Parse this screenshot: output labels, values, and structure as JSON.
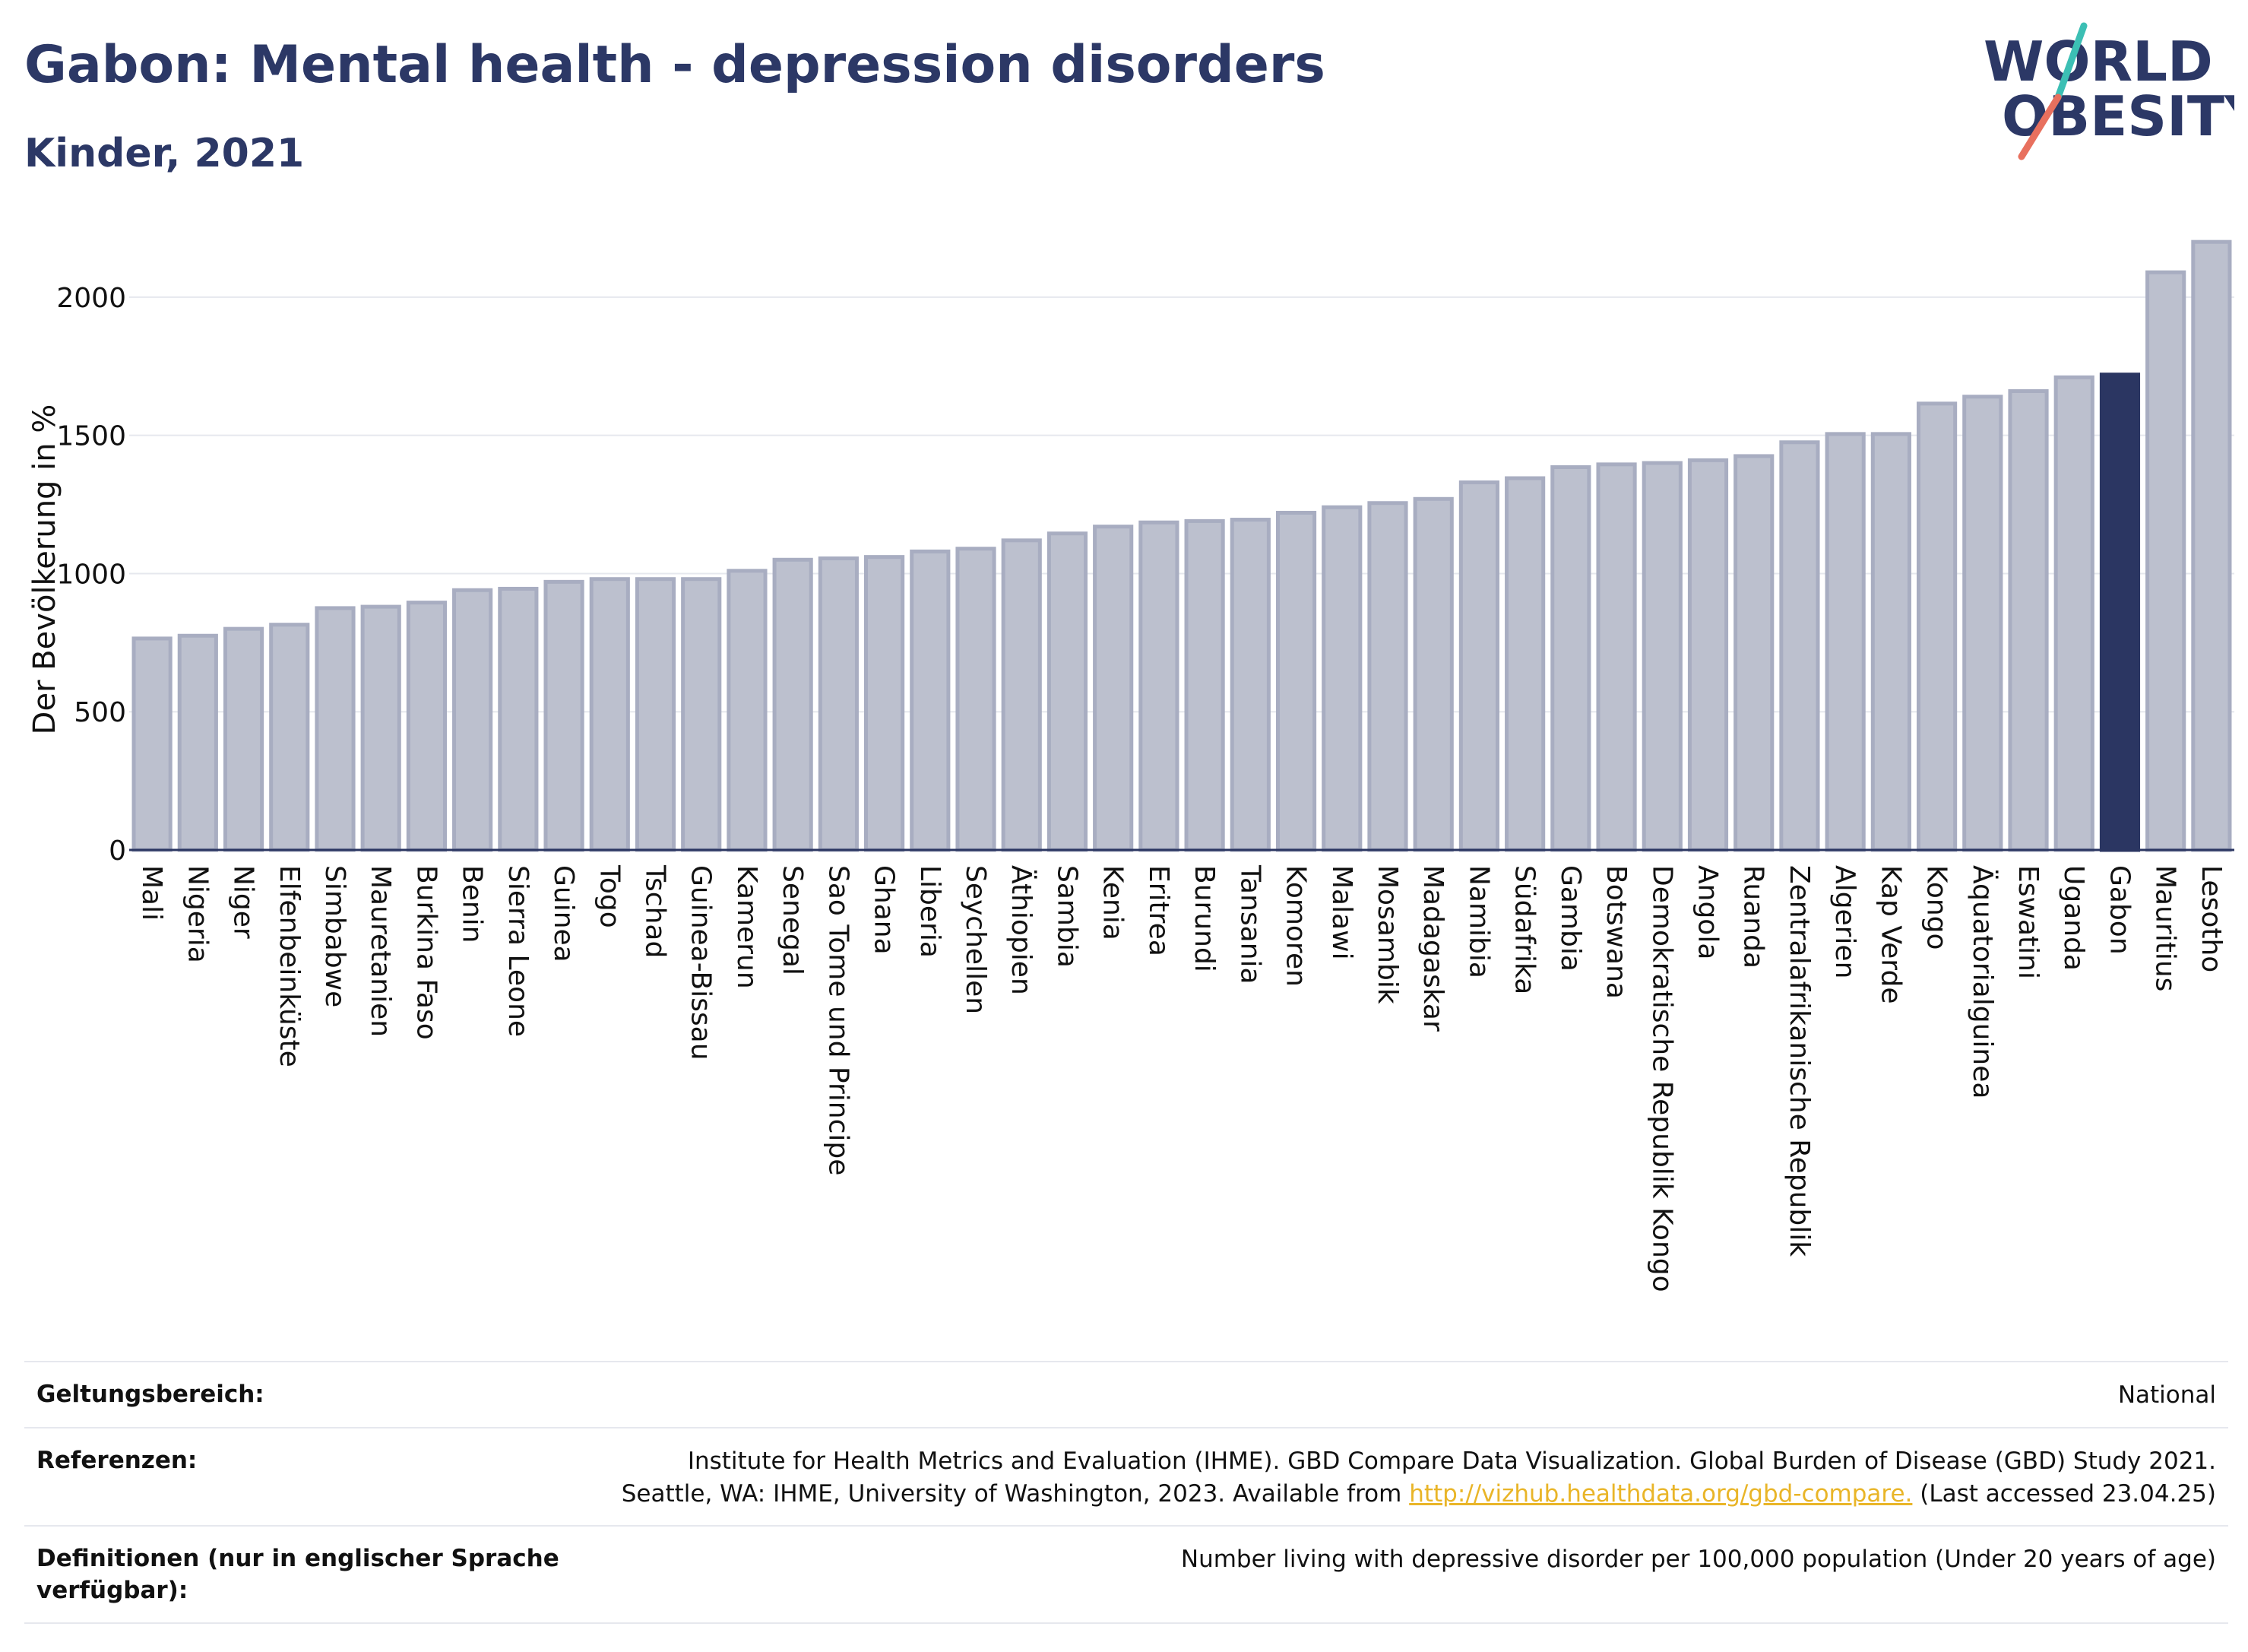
{
  "header": {
    "title": "Gabon: Mental health - depression disorders",
    "subtitle": "Kinder, 2021"
  },
  "logo": {
    "line1": "WORLD",
    "line2": "OBESITY"
  },
  "colors": {
    "highlight": "#2b3662",
    "bar": "#bcc0ce",
    "bar_stroke": "#a8adc1",
    "grid": "#e6e8ee",
    "text": "#2b365f",
    "link": "#e9b528"
  },
  "chart_data": {
    "type": "bar",
    "title": "Gabon: Mental health - depression disorders",
    "subtitle": "Kinder, 2021",
    "ylabel": "Der Bevölkerung in %",
    "xlabel": "",
    "ylim": [
      0,
      2250
    ],
    "yticks": [
      0,
      500,
      1000,
      1500,
      2000
    ],
    "grid": true,
    "highlight": "Gabon",
    "categories": [
      "Mali",
      "Nigeria",
      "Niger",
      "Elfenbeinküste",
      "Simbabwe",
      "Mauretanien",
      "Burkina Faso",
      "Benin",
      "Sierra Leone",
      "Guinea",
      "Togo",
      "Tschad",
      "Guinea-Bissau",
      "Kamerun",
      "Senegal",
      "Sao Tome und Principe",
      "Ghana",
      "Liberia",
      "Seychellen",
      "Äthiopien",
      "Sambia",
      "Kenia",
      "Eritrea",
      "Burundi",
      "Tansania",
      "Komoren",
      "Malawi",
      "Mosambik",
      "Madagaskar",
      "Namibia",
      "Südafrika",
      "Gambia",
      "Botswana",
      "Demokratische Republik Kongo",
      "Angola",
      "Ruanda",
      "Zentralafrikanische Republik",
      "Algerien",
      "Kap Verde",
      "Kongo",
      "Äquatorialguinea",
      "Eswatini",
      "Uganda",
      "Gabon",
      "Mauritius",
      "Lesotho"
    ],
    "values": [
      765,
      775,
      800,
      815,
      875,
      880,
      895,
      940,
      945,
      970,
      980,
      980,
      980,
      1010,
      1050,
      1055,
      1060,
      1080,
      1090,
      1120,
      1145,
      1170,
      1185,
      1190,
      1195,
      1220,
      1240,
      1255,
      1270,
      1330,
      1345,
      1385,
      1395,
      1400,
      1410,
      1425,
      1475,
      1505,
      1505,
      1615,
      1640,
      1660,
      1710,
      1720,
      2090,
      2200
    ]
  },
  "footer": {
    "scope_label": "Geltungsbereich:",
    "scope_value": "National",
    "references_label": "Referenzen:",
    "references_line1": "Institute for Health Metrics and Evaluation (IHME). GBD Compare Data Visualization. Global Burden of Disease (GBD) Study 2021.",
    "references_line2_pre": "Seattle, WA: IHME, University of Washington, 2023. Available from ",
    "references_link": "http://vizhub.healthdata.org/gbd-compare.",
    "references_line2_post": " (Last accessed 23.04.25)",
    "definitions_label": "Definitionen (nur in englischer Sprache verfügbar):",
    "definitions_value": "Number living with depressive disorder per 100,000 population (Under 20 years of age)"
  }
}
